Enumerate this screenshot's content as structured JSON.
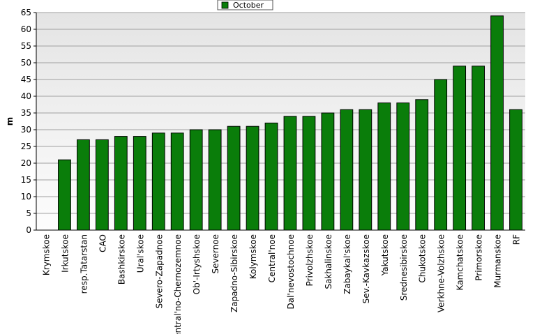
{
  "chart_data": {
    "type": "bar",
    "ylabel": "m",
    "xlabel": "",
    "title": "",
    "ylim": [
      0,
      65
    ],
    "yticks": [
      0,
      5,
      10,
      15,
      20,
      25,
      30,
      35,
      40,
      45,
      50,
      55,
      60,
      65
    ],
    "grid": true,
    "legend_position": "top",
    "categories": [
      "Krymskoe",
      "Irkutskoe",
      "resp.Tatarstan",
      "CAO",
      "Bashkirskoe",
      "Ural'skoe",
      "Severo-Zapadnoe",
      "Central'no-Chernozemnoe",
      "Ob'-Irtyshskoe",
      "Severnoe",
      "Zapadno-Sibirskoe",
      "Kolymskoe",
      "Central'noe",
      "Dal'nevostochnoe",
      "Privolzhskoe",
      "Sakhalinskoe",
      "Zabaykal'skoe",
      "Sev.-Kavkazskoe",
      "Yakutskoe",
      "Srednesibirskoe",
      "Chukotskoe",
      "Verkhne-Volzhskoe",
      "Kamchatskoe",
      "Primorskoe",
      "Murmanskoe",
      "RF"
    ],
    "series": [
      {
        "name": "October",
        "color": "#0a7d0a",
        "values": [
          0,
          21,
          27,
          27,
          28,
          28,
          29,
          29,
          30,
          30,
          31,
          31,
          32,
          34,
          34,
          35,
          36,
          36,
          38,
          38,
          39,
          45,
          49,
          49,
          64,
          36
        ]
      }
    ]
  }
}
